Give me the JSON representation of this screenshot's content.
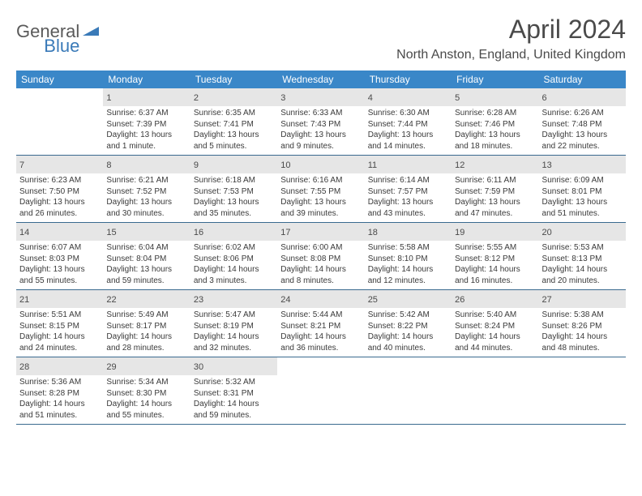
{
  "logo": {
    "text_gray": "General",
    "text_blue": "Blue"
  },
  "title": "April 2024",
  "location": "North Anston, England, United Kingdom",
  "colors": {
    "header_bg": "#3a87c8",
    "header_text": "#ffffff",
    "daynum_bg": "#e6e6e6",
    "text": "#4a4a4a",
    "border": "#3a6a8f",
    "logo_gray": "#5a5a5a",
    "logo_blue": "#3a7ab8"
  },
  "day_names": [
    "Sunday",
    "Monday",
    "Tuesday",
    "Wednesday",
    "Thursday",
    "Friday",
    "Saturday"
  ],
  "weeks": [
    [
      {
        "n": "",
        "s": "",
        "t": "",
        "d": ""
      },
      {
        "n": "1",
        "s": "Sunrise: 6:37 AM",
        "t": "Sunset: 7:39 PM",
        "d": "Daylight: 13 hours and 1 minute."
      },
      {
        "n": "2",
        "s": "Sunrise: 6:35 AM",
        "t": "Sunset: 7:41 PM",
        "d": "Daylight: 13 hours and 5 minutes."
      },
      {
        "n": "3",
        "s": "Sunrise: 6:33 AM",
        "t": "Sunset: 7:43 PM",
        "d": "Daylight: 13 hours and 9 minutes."
      },
      {
        "n": "4",
        "s": "Sunrise: 6:30 AM",
        "t": "Sunset: 7:44 PM",
        "d": "Daylight: 13 hours and 14 minutes."
      },
      {
        "n": "5",
        "s": "Sunrise: 6:28 AM",
        "t": "Sunset: 7:46 PM",
        "d": "Daylight: 13 hours and 18 minutes."
      },
      {
        "n": "6",
        "s": "Sunrise: 6:26 AM",
        "t": "Sunset: 7:48 PM",
        "d": "Daylight: 13 hours and 22 minutes."
      }
    ],
    [
      {
        "n": "7",
        "s": "Sunrise: 6:23 AM",
        "t": "Sunset: 7:50 PM",
        "d": "Daylight: 13 hours and 26 minutes."
      },
      {
        "n": "8",
        "s": "Sunrise: 6:21 AM",
        "t": "Sunset: 7:52 PM",
        "d": "Daylight: 13 hours and 30 minutes."
      },
      {
        "n": "9",
        "s": "Sunrise: 6:18 AM",
        "t": "Sunset: 7:53 PM",
        "d": "Daylight: 13 hours and 35 minutes."
      },
      {
        "n": "10",
        "s": "Sunrise: 6:16 AM",
        "t": "Sunset: 7:55 PM",
        "d": "Daylight: 13 hours and 39 minutes."
      },
      {
        "n": "11",
        "s": "Sunrise: 6:14 AM",
        "t": "Sunset: 7:57 PM",
        "d": "Daylight: 13 hours and 43 minutes."
      },
      {
        "n": "12",
        "s": "Sunrise: 6:11 AM",
        "t": "Sunset: 7:59 PM",
        "d": "Daylight: 13 hours and 47 minutes."
      },
      {
        "n": "13",
        "s": "Sunrise: 6:09 AM",
        "t": "Sunset: 8:01 PM",
        "d": "Daylight: 13 hours and 51 minutes."
      }
    ],
    [
      {
        "n": "14",
        "s": "Sunrise: 6:07 AM",
        "t": "Sunset: 8:03 PM",
        "d": "Daylight: 13 hours and 55 minutes."
      },
      {
        "n": "15",
        "s": "Sunrise: 6:04 AM",
        "t": "Sunset: 8:04 PM",
        "d": "Daylight: 13 hours and 59 minutes."
      },
      {
        "n": "16",
        "s": "Sunrise: 6:02 AM",
        "t": "Sunset: 8:06 PM",
        "d": "Daylight: 14 hours and 3 minutes."
      },
      {
        "n": "17",
        "s": "Sunrise: 6:00 AM",
        "t": "Sunset: 8:08 PM",
        "d": "Daylight: 14 hours and 8 minutes."
      },
      {
        "n": "18",
        "s": "Sunrise: 5:58 AM",
        "t": "Sunset: 8:10 PM",
        "d": "Daylight: 14 hours and 12 minutes."
      },
      {
        "n": "19",
        "s": "Sunrise: 5:55 AM",
        "t": "Sunset: 8:12 PM",
        "d": "Daylight: 14 hours and 16 minutes."
      },
      {
        "n": "20",
        "s": "Sunrise: 5:53 AM",
        "t": "Sunset: 8:13 PM",
        "d": "Daylight: 14 hours and 20 minutes."
      }
    ],
    [
      {
        "n": "21",
        "s": "Sunrise: 5:51 AM",
        "t": "Sunset: 8:15 PM",
        "d": "Daylight: 14 hours and 24 minutes."
      },
      {
        "n": "22",
        "s": "Sunrise: 5:49 AM",
        "t": "Sunset: 8:17 PM",
        "d": "Daylight: 14 hours and 28 minutes."
      },
      {
        "n": "23",
        "s": "Sunrise: 5:47 AM",
        "t": "Sunset: 8:19 PM",
        "d": "Daylight: 14 hours and 32 minutes."
      },
      {
        "n": "24",
        "s": "Sunrise: 5:44 AM",
        "t": "Sunset: 8:21 PM",
        "d": "Daylight: 14 hours and 36 minutes."
      },
      {
        "n": "25",
        "s": "Sunrise: 5:42 AM",
        "t": "Sunset: 8:22 PM",
        "d": "Daylight: 14 hours and 40 minutes."
      },
      {
        "n": "26",
        "s": "Sunrise: 5:40 AM",
        "t": "Sunset: 8:24 PM",
        "d": "Daylight: 14 hours and 44 minutes."
      },
      {
        "n": "27",
        "s": "Sunrise: 5:38 AM",
        "t": "Sunset: 8:26 PM",
        "d": "Daylight: 14 hours and 48 minutes."
      }
    ],
    [
      {
        "n": "28",
        "s": "Sunrise: 5:36 AM",
        "t": "Sunset: 8:28 PM",
        "d": "Daylight: 14 hours and 51 minutes."
      },
      {
        "n": "29",
        "s": "Sunrise: 5:34 AM",
        "t": "Sunset: 8:30 PM",
        "d": "Daylight: 14 hours and 55 minutes."
      },
      {
        "n": "30",
        "s": "Sunrise: 5:32 AM",
        "t": "Sunset: 8:31 PM",
        "d": "Daylight: 14 hours and 59 minutes."
      },
      {
        "n": "",
        "s": "",
        "t": "",
        "d": ""
      },
      {
        "n": "",
        "s": "",
        "t": "",
        "d": ""
      },
      {
        "n": "",
        "s": "",
        "t": "",
        "d": ""
      },
      {
        "n": "",
        "s": "",
        "t": "",
        "d": ""
      }
    ]
  ]
}
